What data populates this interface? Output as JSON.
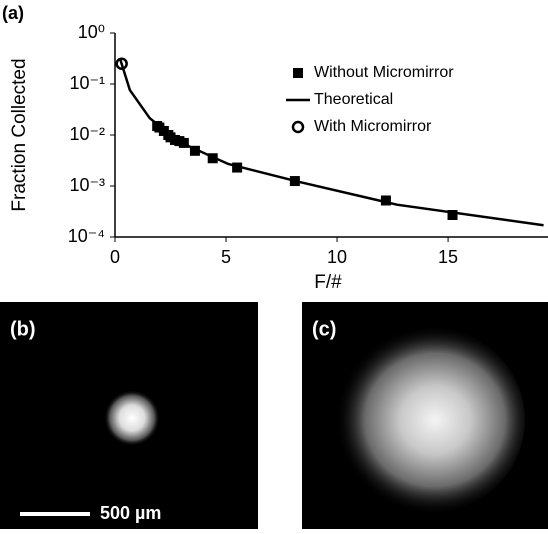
{
  "chart_data": {
    "type": "scatter",
    "label": "(a)",
    "y_label": "Fraction Collected",
    "x_label": "F/#",
    "xlim": [
      0,
      19.5
    ],
    "xticks": [
      0,
      5,
      10,
      15
    ],
    "ylim": [
      0.0001,
      1
    ],
    "yscale": "log",
    "yticks": [
      {
        "value": 1,
        "label": "10⁰"
      },
      {
        "value": 0.1,
        "label": "10⁻¹"
      },
      {
        "value": 0.01,
        "label": "10⁻²"
      },
      {
        "value": 0.001,
        "label": "10⁻³"
      },
      {
        "value": 0.0001,
        "label": "10⁻⁴"
      }
    ],
    "legend": "upper right",
    "series": [
      {
        "name": "Without Micromirror",
        "marker": "square",
        "color": "#000000",
        "x": [
          1.9,
          2.0,
          2.2,
          2.4,
          2.5,
          2.7,
          2.9,
          3.1,
          3.6,
          4.4,
          5.5,
          8.1,
          12.2,
          15.2
        ],
        "values": [
          0.015,
          0.014,
          0.012,
          0.01,
          0.009,
          0.008,
          0.0076,
          0.007,
          0.0049,
          0.0035,
          0.0023,
          0.00125,
          0.00052,
          0.00027
        ]
      },
      {
        "name": "Theoretical",
        "marker": "line",
        "color": "#000000",
        "x": [
          0.22,
          0.67,
          1.56,
          2.9,
          5.1,
          8.3,
          12.7,
          19.3
        ],
        "values": [
          0.32,
          0.076,
          0.0215,
          0.0073,
          0.0027,
          0.0012,
          0.00043,
          0.00017
        ]
      },
      {
        "name": "With Micromirror",
        "marker": "circle",
        "color": "#000000",
        "x": [
          0.3
        ],
        "values": [
          0.25
        ]
      }
    ]
  },
  "images": [
    {
      "label": "(b)",
      "scale_bar": "500 µm"
    },
    {
      "label": "(c)"
    }
  ]
}
